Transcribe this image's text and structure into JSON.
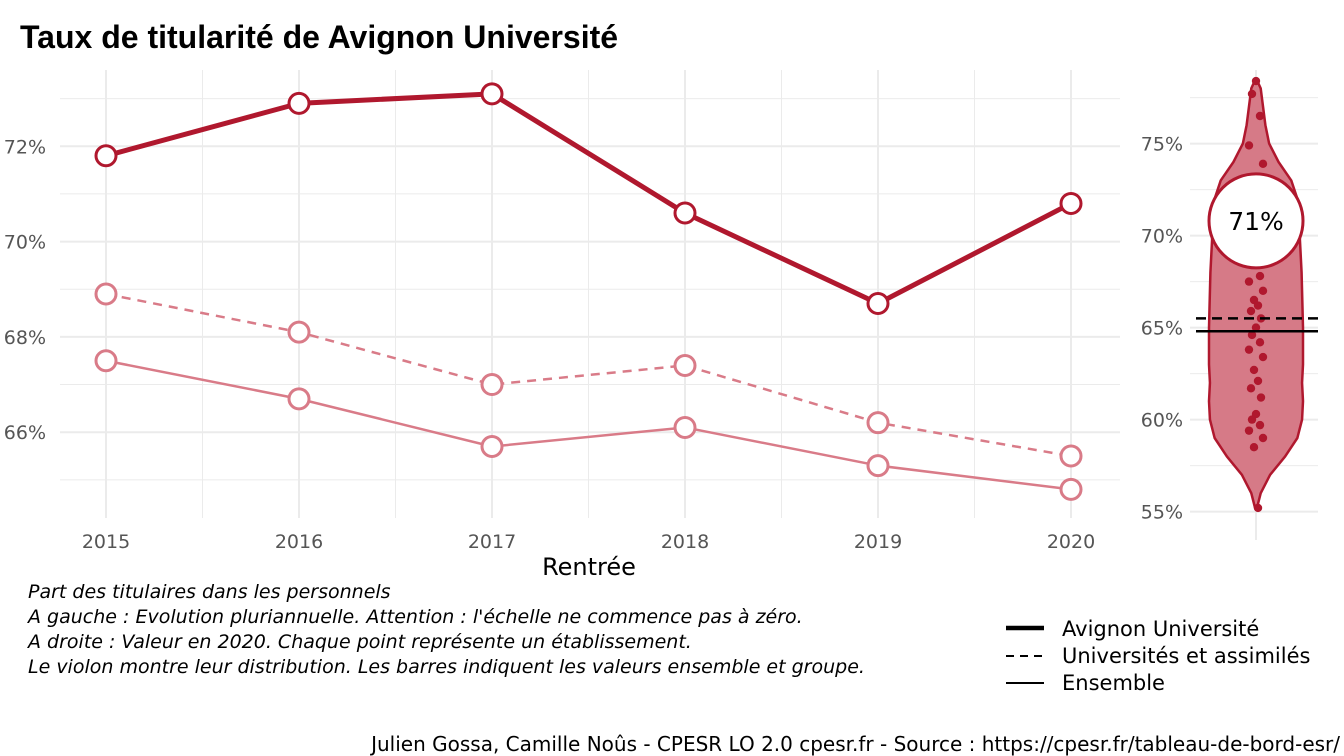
{
  "title": "Taux de titularité de Avignon Université",
  "caption_lines": [
    "Part des titulaires dans les personnels",
    "A gauche : Evolution pluriannuelle. Attention : l'échelle ne commence pas à zéro.",
    "A droite : Valeur en 2020. Chaque point représente un établissement.",
    "Le violon montre leur distribution. Les barres indiquent les valeurs ensemble et groupe."
  ],
  "source": "Julien Gossa, Camille Noûs - CPESR LO 2.0 cpesr.fr - Source : https://cpesr.fr/tableau-de-bord-esr/",
  "colors": {
    "accent": "#b0182e",
    "light": "#d97b88",
    "violin_fill": "#d67a87",
    "grid": "#ebebeb"
  },
  "legend": [
    {
      "label": "Avignon Université",
      "style": "thick"
    },
    {
      "label": "Universités et assimilés",
      "style": "dashed"
    },
    {
      "label": "Ensemble",
      "style": "thin"
    }
  ],
  "chart_data": [
    {
      "type": "line",
      "xlabel": "Rentrée",
      "ylabel": "",
      "x": [
        2015,
        2016,
        2017,
        2018,
        2019,
        2020
      ],
      "x_tick_labels": [
        "2015",
        "2016",
        "2017",
        "2018",
        "2019",
        "2020"
      ],
      "ylim": [
        64.2,
        73.6
      ],
      "y_ticks": [
        66,
        68,
        70,
        72
      ],
      "y_tick_labels": [
        "66%",
        "68%",
        "70%",
        "72%"
      ],
      "grid": true,
      "series": [
        {
          "name": "Avignon Université",
          "values": [
            71.8,
            72.9,
            73.1,
            70.6,
            68.7,
            70.8
          ]
        },
        {
          "name": "Universités et assimilés",
          "values": [
            68.9,
            68.1,
            67.0,
            67.4,
            66.2,
            65.5
          ]
        },
        {
          "name": "Ensemble",
          "values": [
            67.5,
            66.7,
            65.7,
            66.1,
            65.3,
            64.8
          ]
        }
      ]
    },
    {
      "type": "scatter",
      "subtype": "violin",
      "ylim": [
        54,
        79
      ],
      "y_ticks": [
        55,
        60,
        65,
        70,
        75
      ],
      "y_tick_labels": [
        "55%",
        "60%",
        "65%",
        "70%",
        "75%"
      ],
      "grid": true,
      "highlight_value": 70.8,
      "highlight_label": "71%",
      "reference_lines": [
        {
          "name": "Universités et assimilés",
          "value": 65.5,
          "style": "dashed"
        },
        {
          "name": "Ensemble",
          "value": 64.8,
          "style": "solid"
        }
      ],
      "points": [
        78.4,
        77.7,
        76.5,
        74.9,
        73.9,
        72.2,
        71.6,
        70.7,
        70.2,
        69.6,
        68.6,
        67.8,
        67.5,
        67.0,
        66.5,
        66.2,
        65.9,
        65.5,
        65.0,
        64.6,
        64.2,
        63.8,
        63.4,
        62.7,
        62.1,
        61.7,
        61.2,
        60.3,
        60.0,
        59.7,
        59.4,
        59.0,
        58.5,
        55.2
      ],
      "violin_profile": [
        [
          55.2,
          0.02
        ],
        [
          56,
          0.1
        ],
        [
          57,
          0.3
        ],
        [
          58,
          0.62
        ],
        [
          59,
          0.88
        ],
        [
          60,
          0.98
        ],
        [
          61,
          1.0
        ],
        [
          62,
          0.98
        ],
        [
          63,
          1.0
        ],
        [
          64,
          1.0
        ],
        [
          65,
          1.0
        ],
        [
          66,
          0.99
        ],
        [
          67,
          0.98
        ],
        [
          68,
          0.97
        ],
        [
          69,
          0.95
        ],
        [
          70,
          0.93
        ],
        [
          71,
          0.92
        ],
        [
          72,
          0.88
        ],
        [
          73,
          0.75
        ],
        [
          74,
          0.48
        ],
        [
          75,
          0.28
        ],
        [
          76,
          0.2
        ],
        [
          77,
          0.15
        ],
        [
          78,
          0.1
        ],
        [
          78.5,
          0.01
        ]
      ]
    }
  ]
}
